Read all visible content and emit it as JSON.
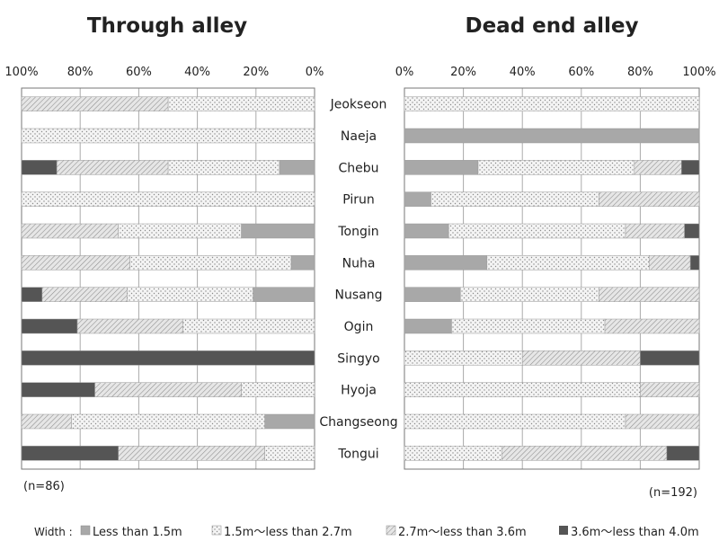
{
  "chart_data": {
    "type": "bar",
    "stacked": true,
    "orientation": "horizontal",
    "categories": [
      "Jeokseon",
      "Naeja",
      "Chebu",
      "Pirun",
      "Tongin",
      "Nuha",
      "Nusang",
      "Ogin",
      "Singyo",
      "Hyoja",
      "Changseong",
      "Tongui"
    ],
    "series_names": [
      "Less than 1.5m",
      "1.5m～less than 2.7m",
      "2.7m～less than 3.6m",
      "3.6m～less than 4.0m"
    ],
    "series_colors": [
      "#a8a8a8",
      "#f2f2f2",
      "#d6d6d6",
      "#555555"
    ],
    "legend_prefix": "Width :",
    "legend_position": "bottom",
    "grid": true,
    "panels": [
      {
        "title": "Through alley",
        "direction": "reversed",
        "tick_labels": [
          "100%",
          "80%",
          "60%",
          "40%",
          "20%",
          "0%"
        ],
        "xlim": [
          0,
          100
        ],
        "n_label": "(n=86)",
        "values": [
          [
            0,
            50,
            50,
            0
          ],
          [
            0,
            100,
            0,
            0
          ],
          [
            12,
            38,
            38,
            12
          ],
          [
            0,
            100,
            0,
            0
          ],
          [
            25,
            42,
            33,
            0
          ],
          [
            8,
            55,
            37,
            0
          ],
          [
            21,
            43,
            29,
            7
          ],
          [
            0,
            45,
            36,
            19
          ],
          [
            0,
            0,
            0,
            100
          ],
          [
            0,
            25,
            50,
            25
          ],
          [
            17,
            66,
            17,
            0
          ],
          [
            0,
            17,
            50,
            33
          ]
        ]
      },
      {
        "title": "Dead end alley",
        "direction": "normal",
        "tick_labels": [
          "0%",
          "20%",
          "40%",
          "60%",
          "80%",
          "100%"
        ],
        "xlim": [
          0,
          100
        ],
        "n_label": "(n=192)",
        "values": [
          [
            0,
            100,
            0,
            0
          ],
          [
            100,
            0,
            0,
            0
          ],
          [
            25,
            53,
            16,
            6
          ],
          [
            9,
            57,
            34,
            0
          ],
          [
            15,
            60,
            20,
            5
          ],
          [
            28,
            55,
            14,
            3
          ],
          [
            19,
            47,
            34,
            0
          ],
          [
            16,
            52,
            32,
            0
          ],
          [
            0,
            40,
            40,
            20
          ],
          [
            0,
            80,
            20,
            0
          ],
          [
            0,
            75,
            25,
            0
          ],
          [
            0,
            33,
            56,
            11
          ]
        ]
      }
    ]
  }
}
